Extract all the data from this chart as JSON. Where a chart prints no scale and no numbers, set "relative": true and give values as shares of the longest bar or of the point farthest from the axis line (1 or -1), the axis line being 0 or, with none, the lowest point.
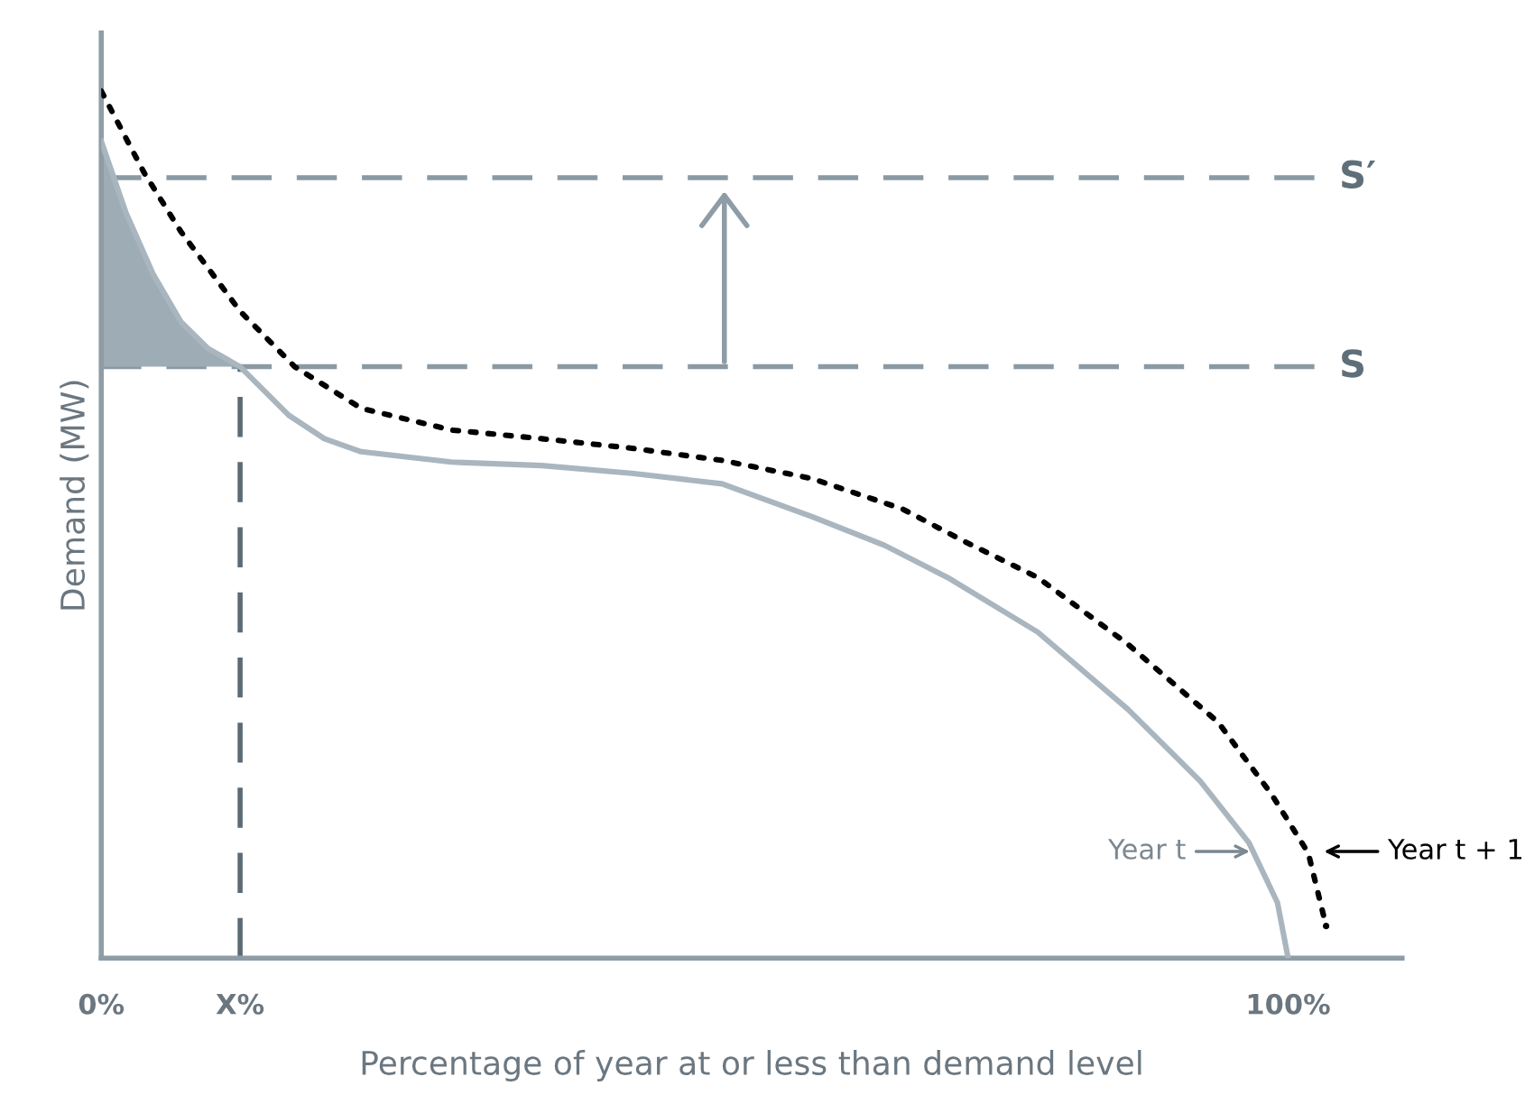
{
  "chart_data": {
    "type": "line",
    "relative": true,
    "xlabel": "Percentage of year at or less than demand level",
    "ylabel": "Demand (MW)",
    "xlim": [
      0,
      109.6
    ],
    "xticks": [
      {
        "value": 0,
        "label": "0%"
      },
      {
        "value": 11.7,
        "label": "X%"
      },
      {
        "value": 100,
        "label": "100%"
      }
    ],
    "tick_labels": "x",
    "grid": false,
    "series": [
      {
        "type": "area",
        "color": "#9eacb6",
        "x": [
          0,
          2.1,
          4.4,
          6.7,
          9.0,
          11.7
        ],
        "values": [
          0.942,
          0.859,
          0.788,
          0.734,
          0.703,
          0.682
        ]
      },
      {
        "color": "#a9b6bf",
        "line_style": "solid",
        "x": [
          0,
          2.1,
          4.4,
          6.7,
          9.0,
          11.7,
          15.8,
          18.8,
          21.9,
          29.5,
          37.1,
          44.7,
          52.3,
          59.9,
          66.0,
          71.3,
          78.9,
          86.5,
          92.6,
          96.7,
          99.1,
          100
        ],
        "values": [
          0.942,
          0.859,
          0.788,
          0.734,
          0.703,
          0.682,
          0.626,
          0.599,
          0.584,
          0.572,
          0.568,
          0.559,
          0.547,
          0.509,
          0.476,
          0.439,
          0.376,
          0.287,
          0.204,
          0.133,
          0.064,
          0
        ]
      },
      {
        "color": "#000000",
        "line_style": "dotted",
        "x": [
          0,
          3.6,
          6.7,
          11.7,
          16.3,
          21.9,
          29.5,
          37.1,
          44.7,
          52.3,
          59.9,
          67.5,
          72.8,
          78.9,
          86.5,
          94.1,
          98.6,
          101.7,
          103.2
        ],
        "values": [
          1.0,
          0.906,
          0.838,
          0.746,
          0.682,
          0.634,
          0.609,
          0.599,
          0.588,
          0.574,
          0.553,
          0.518,
          0.48,
          0.439,
          0.362,
          0.272,
          0.189,
          0.121,
          0.037
        ]
      }
    ],
    "ref_lines": [
      {
        "axis": "y",
        "value": 0.682,
        "label": "S",
        "color": "#8a9aa4",
        "line_style": "dashed"
      },
      {
        "axis": "y",
        "value": 0.9,
        "label": "S′",
        "color": "#8a9aa4",
        "line_style": "dashed"
      },
      {
        "axis": "x",
        "value": 11.7,
        "label": null,
        "color": "#5b6b76",
        "line_style": "dashed"
      }
    ],
    "annotations": [
      {
        "text": "Year t",
        "x": 97.4,
        "y": 0.123
      },
      {
        "text": "Year t + 1",
        "x": 102.4,
        "y": 0.123
      }
    ]
  }
}
